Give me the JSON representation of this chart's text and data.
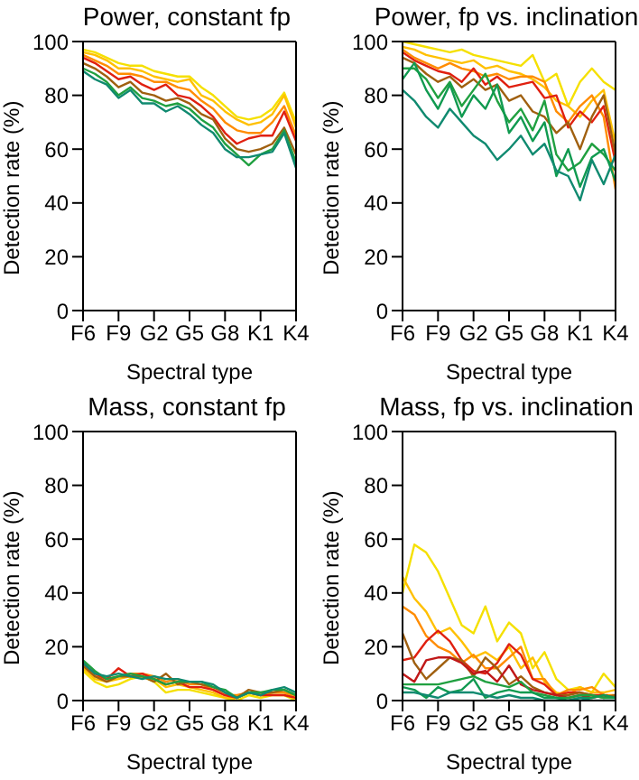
{
  "chart_data": [
    {
      "type": "line",
      "title": "Power, constant fp",
      "xlabel": "Spectral type",
      "ylabel": "Detection rate (%)",
      "categories": [
        "F6",
        null,
        null,
        "F9",
        null,
        null,
        "G2",
        null,
        null,
        "G5",
        null,
        null,
        "G8",
        null,
        null,
        "K1",
        null,
        null,
        "K4"
      ],
      "ylim": [
        0,
        100
      ],
      "yticks": [
        0,
        20,
        40,
        60,
        80,
        100
      ],
      "marker": "none",
      "series": [
        {
          "color": "#f5e000",
          "values": [
            97,
            96,
            94,
            92,
            91,
            91,
            89,
            88,
            87,
            87,
            83,
            80,
            76,
            72,
            71,
            72,
            75,
            81,
            70
          ]
        },
        {
          "color": "#ffc000",
          "values": [
            96,
            95,
            93,
            90,
            90,
            89,
            87,
            86,
            85,
            86,
            80,
            78,
            74,
            71,
            69,
            70,
            73,
            80,
            68
          ]
        },
        {
          "color": "#ff8c00",
          "values": [
            95,
            93,
            91,
            88,
            88,
            87,
            85,
            85,
            83,
            82,
            78,
            75,
            70,
            67,
            66,
            66,
            70,
            76,
            65
          ]
        },
        {
          "color": "#e02010",
          "values": [
            94,
            92,
            89,
            86,
            87,
            84,
            82,
            84,
            80,
            79,
            76,
            72,
            66,
            62,
            64,
            65,
            65,
            74,
            63
          ]
        },
        {
          "color": "#a06010",
          "values": [
            92,
            90,
            87,
            83,
            85,
            81,
            80,
            78,
            79,
            77,
            73,
            71,
            64,
            60,
            59,
            60,
            62,
            68,
            58
          ]
        },
        {
          "color": "#20a040",
          "values": [
            90,
            88,
            85,
            80,
            83,
            79,
            78,
            76,
            77,
            75,
            71,
            68,
            62,
            58,
            54,
            58,
            60,
            67,
            55
          ]
        },
        {
          "color": "#108a70",
          "values": [
            89,
            86,
            84,
            79,
            82,
            77,
            77,
            74,
            76,
            73,
            69,
            66,
            60,
            57,
            57,
            58,
            59,
            66,
            53
          ]
        }
      ]
    },
    {
      "type": "line",
      "title": "Power, fp vs. inclination",
      "xlabel": "Spectral type",
      "ylabel": "Detection rate (%)",
      "categories": [
        "F6",
        null,
        null,
        "F9",
        null,
        null,
        "G2",
        null,
        null,
        "G5",
        null,
        null,
        "G8",
        null,
        null,
        "K1",
        null,
        null,
        "K4"
      ],
      "ylim": [
        0,
        100
      ],
      "yticks": [
        0,
        20,
        40,
        60,
        80,
        100
      ],
      "marker": "none",
      "series": [
        {
          "color": "#f5e000",
          "values": [
            100,
            99,
            98,
            97,
            96,
            97,
            95,
            94,
            93,
            92,
            91,
            95,
            85,
            88,
            76,
            85,
            90,
            85,
            82
          ]
        },
        {
          "color": "#ffc000",
          "values": [
            98,
            97,
            95,
            94,
            93,
            92,
            93,
            90,
            91,
            89,
            88,
            86,
            83,
            78,
            76,
            72,
            78,
            82,
            62
          ]
        },
        {
          "color": "#ff8c00",
          "values": [
            97,
            94,
            92,
            90,
            92,
            90,
            89,
            87,
            88,
            86,
            87,
            87,
            85,
            74,
            70,
            76,
            80,
            72,
            45
          ]
        },
        {
          "color": "#e02010",
          "values": [
            96,
            93,
            91,
            89,
            88,
            85,
            90,
            84,
            87,
            83,
            84,
            85,
            79,
            80,
            68,
            74,
            70,
            76,
            55
          ]
        },
        {
          "color": "#a06010",
          "values": [
            94,
            92,
            88,
            85,
            87,
            83,
            86,
            82,
            84,
            78,
            80,
            74,
            72,
            66,
            70,
            60,
            72,
            80,
            58
          ]
        },
        {
          "color": "#20a040",
          "values": [
            90,
            90,
            86,
            79,
            85,
            76,
            82,
            88,
            78,
            70,
            75,
            67,
            78,
            58,
            52,
            55,
            62,
            58,
            52
          ]
        },
        {
          "color": "#109a50",
          "values": [
            86,
            92,
            82,
            75,
            84,
            72,
            80,
            75,
            84,
            66,
            72,
            63,
            70,
            50,
            60,
            46,
            57,
            60,
            48
          ]
        },
        {
          "color": "#108a70",
          "values": [
            82,
            78,
            72,
            68,
            75,
            70,
            65,
            62,
            56,
            60,
            65,
            58,
            62,
            52,
            50,
            41,
            56,
            47,
            58
          ]
        }
      ]
    },
    {
      "type": "line",
      "title": "Mass, constant fp",
      "xlabel": "Spectral type",
      "ylabel": "Detection rate (%)",
      "categories": [
        "F6",
        null,
        null,
        "F9",
        null,
        null,
        "G2",
        null,
        null,
        "G5",
        null,
        null,
        "G8",
        null,
        null,
        "K1",
        null,
        null,
        "K4"
      ],
      "ylim": [
        0,
        100
      ],
      "yticks": [
        0,
        20,
        40,
        60,
        80,
        100
      ],
      "marker": "none",
      "series": [
        {
          "color": "#f5e000",
          "values": [
            11,
            7,
            5,
            6,
            8,
            9,
            7,
            3,
            4,
            4,
            3,
            2,
            1,
            0,
            2,
            1,
            2,
            2,
            0
          ]
        },
        {
          "color": "#ffc000",
          "values": [
            12,
            8,
            7,
            8,
            9,
            9,
            8,
            5,
            6,
            5,
            4,
            3,
            1,
            1,
            3,
            2,
            3,
            3,
            1
          ]
        },
        {
          "color": "#ff8c00",
          "values": [
            13,
            9,
            8,
            9,
            10,
            10,
            9,
            7,
            8,
            6,
            6,
            4,
            2,
            2,
            3,
            2,
            3,
            3,
            2
          ]
        },
        {
          "color": "#e02010",
          "values": [
            14,
            10,
            8,
            12,
            9,
            10,
            8,
            6,
            7,
            5,
            5,
            4,
            2,
            1,
            3,
            2,
            2,
            2,
            1
          ]
        },
        {
          "color": "#a06010",
          "values": [
            13,
            9,
            7,
            9,
            9,
            9,
            7,
            10,
            6,
            7,
            6,
            5,
            3,
            1,
            4,
            3,
            3,
            4,
            2
          ]
        },
        {
          "color": "#20a040",
          "values": [
            15,
            11,
            8,
            9,
            10,
            9,
            8,
            6,
            7,
            7,
            7,
            5,
            4,
            1,
            3,
            3,
            4,
            4,
            2
          ]
        },
        {
          "color": "#108a70",
          "values": [
            14,
            10,
            9,
            10,
            9,
            8,
            9,
            8,
            8,
            7,
            7,
            6,
            3,
            1,
            3,
            2,
            4,
            5,
            3
          ]
        }
      ]
    },
    {
      "type": "line",
      "title": "Mass, fp vs. inclination",
      "xlabel": "Spectral type",
      "ylabel": "Detection rate (%)",
      "categories": [
        "F6",
        null,
        null,
        "F9",
        null,
        null,
        "G2",
        null,
        null,
        "G5",
        null,
        null,
        "G8",
        null,
        null,
        "K1",
        null,
        null,
        "K4"
      ],
      "ylim": [
        0,
        100
      ],
      "yticks": [
        0,
        20,
        40,
        60,
        80,
        100
      ],
      "marker": "none",
      "series": [
        {
          "color": "#f5e000",
          "values": [
            40,
            58,
            55,
            48,
            38,
            28,
            25,
            35,
            22,
            29,
            25,
            12,
            18,
            8,
            4,
            5,
            3,
            10,
            5
          ]
        },
        {
          "color": "#ffc000",
          "values": [
            46,
            38,
            33,
            25,
            27,
            22,
            16,
            18,
            15,
            20,
            12,
            16,
            7,
            3,
            2,
            5,
            3,
            3,
            4
          ]
        },
        {
          "color": "#ff8c00",
          "values": [
            35,
            32,
            24,
            20,
            18,
            14,
            17,
            12,
            12,
            16,
            20,
            8,
            8,
            2,
            4,
            4,
            5,
            2,
            2
          ]
        },
        {
          "color": "#e02010",
          "values": [
            15,
            16,
            22,
            26,
            22,
            15,
            11,
            10,
            14,
            21,
            17,
            8,
            6,
            2,
            3,
            3,
            2,
            2,
            1
          ]
        },
        {
          "color": "#a06010",
          "values": [
            25,
            14,
            8,
            12,
            16,
            15,
            9,
            16,
            12,
            6,
            9,
            5,
            3,
            2,
            2,
            3,
            2,
            1,
            2
          ]
        },
        {
          "color": "#c01818",
          "values": [
            10,
            7,
            15,
            16,
            16,
            14,
            10,
            11,
            7,
            13,
            6,
            4,
            3,
            2,
            1,
            2,
            1,
            2,
            1
          ]
        },
        {
          "color": "#20a040",
          "values": [
            6,
            6,
            6,
            6,
            7,
            8,
            9,
            7,
            6,
            5,
            7,
            3,
            2,
            1,
            1,
            2,
            2,
            1,
            1
          ]
        },
        {
          "color": "#109a50",
          "values": [
            5,
            4,
            1,
            5,
            3,
            4,
            8,
            1,
            3,
            4,
            3,
            3,
            1,
            1,
            0,
            1,
            1,
            2,
            1
          ]
        },
        {
          "color": "#108a70",
          "values": [
            3,
            3,
            2,
            1,
            3,
            3,
            3,
            2,
            1,
            2,
            1,
            1,
            0,
            0,
            0,
            1,
            0,
            0,
            0
          ]
        }
      ]
    }
  ]
}
